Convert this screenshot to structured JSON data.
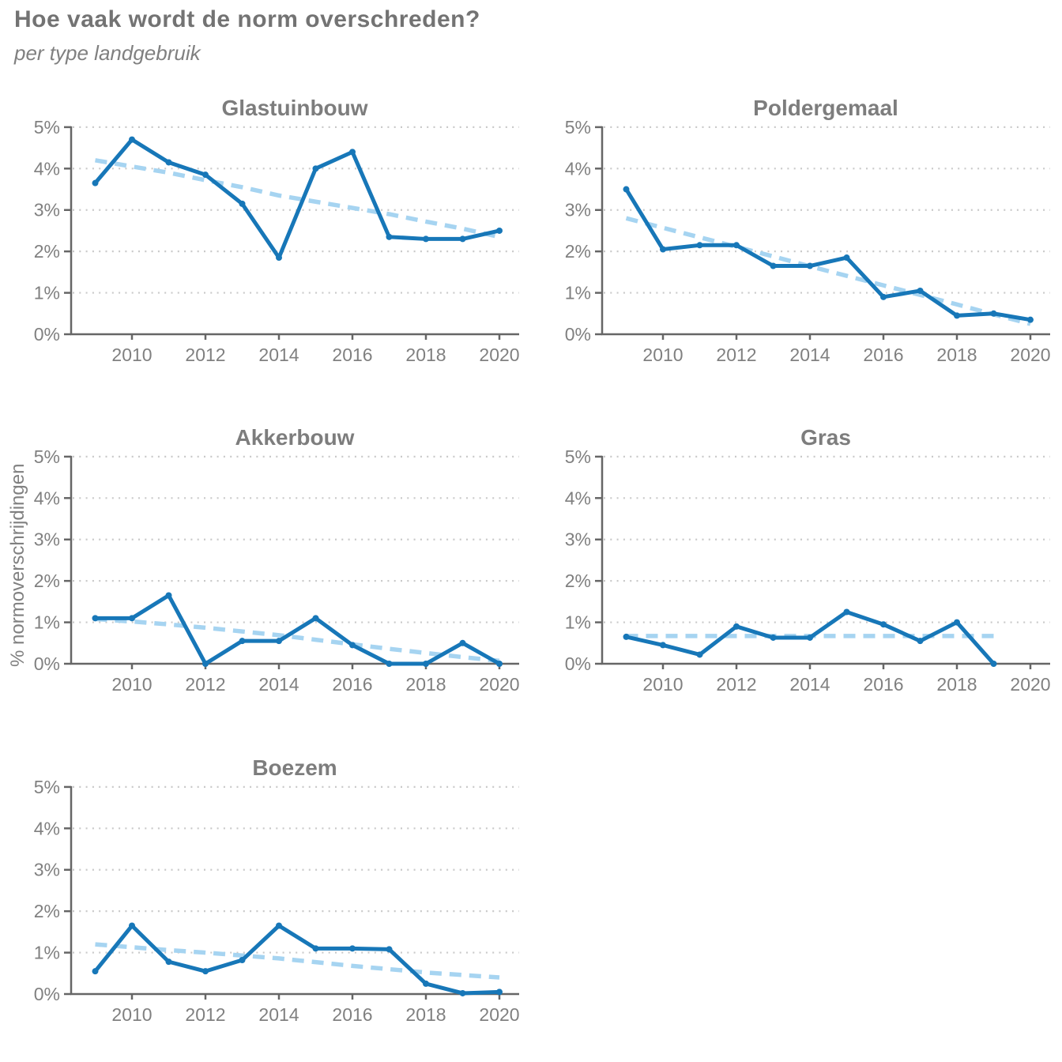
{
  "page": {
    "title": "Hoe vaak wordt de norm overschreden?",
    "subtitle": "per type landgebruik",
    "ylabel": "% normoverschrijdingen"
  },
  "colors": {
    "series": "#1777b8",
    "trend": "#a6d4f1",
    "grid": "#c9c9c9",
    "axis": "#666666",
    "tick_text": "#808080",
    "panel_title": "#7d7d7d",
    "header_text": "#737373"
  },
  "axis": {
    "x_ticks": [
      2010,
      2012,
      2014,
      2016,
      2018,
      2020
    ],
    "y_tick_labels": [
      "0%",
      "1%",
      "2%",
      "3%",
      "4%",
      "5%"
    ],
    "ylim": [
      0,
      5
    ],
    "grid": "dotted horizontal at 1%-5%",
    "legend": "none"
  },
  "chart_data": [
    {
      "type": "line",
      "title": "Glastuinbouw",
      "x": [
        2009,
        2010,
        2011,
        2012,
        2013,
        2014,
        2015,
        2016,
        2017,
        2018,
        2019,
        2020
      ],
      "values": [
        3.65,
        4.7,
        4.15,
        3.85,
        3.15,
        1.85,
        4.0,
        4.4,
        2.35,
        2.3,
        2.3,
        2.5
      ],
      "trend_values": [
        4.2,
        4.05,
        3.9,
        3.72,
        3.55,
        3.35,
        3.2,
        3.05,
        2.9,
        2.72,
        2.55,
        2.35
      ]
    },
    {
      "type": "line",
      "title": "Poldergemaal",
      "x": [
        2009,
        2010,
        2011,
        2012,
        2013,
        2014,
        2015,
        2016,
        2017,
        2018,
        2019,
        2020
      ],
      "values": [
        3.5,
        2.05,
        2.15,
        2.15,
        1.65,
        1.65,
        1.85,
        0.9,
        1.05,
        0.45,
        0.5,
        0.35
      ],
      "trend_values": [
        2.8,
        2.57,
        2.34,
        2.11,
        1.88,
        1.64,
        1.41,
        1.18,
        0.95,
        0.72,
        0.48,
        0.25
      ]
    },
    {
      "type": "line",
      "title": "Akkerbouw",
      "x": [
        2009,
        2010,
        2011,
        2012,
        2013,
        2014,
        2015,
        2016,
        2017,
        2018,
        2019,
        2020
      ],
      "values": [
        1.1,
        1.1,
        1.65,
        0.0,
        0.55,
        0.55,
        1.1,
        0.45,
        0.0,
        0.0,
        0.5,
        0.0
      ],
      "trend_values": [
        1.08,
        1.02,
        0.95,
        0.87,
        0.78,
        0.69,
        0.58,
        0.47,
        0.36,
        0.26,
        0.16,
        0.07
      ]
    },
    {
      "type": "line",
      "title": "Gras",
      "x": [
        2009,
        2010,
        2011,
        2012,
        2013,
        2014,
        2015,
        2016,
        2017,
        2018,
        2019
      ],
      "values": [
        0.65,
        0.45,
        0.22,
        0.9,
        0.63,
        0.63,
        1.25,
        0.95,
        0.55,
        1.0,
        0.0
      ],
      "trend_values": [
        0.67,
        0.67,
        0.67,
        0.67,
        0.67,
        0.67,
        0.67,
        0.67,
        0.67,
        0.67,
        0.67
      ]
    },
    {
      "type": "line",
      "title": "Boezem",
      "x": [
        2009,
        2010,
        2011,
        2012,
        2013,
        2014,
        2015,
        2016,
        2017,
        2018,
        2019,
        2020
      ],
      "values": [
        0.55,
        1.65,
        0.78,
        0.55,
        0.82,
        1.65,
        1.1,
        1.1,
        1.08,
        0.25,
        0.02,
        0.05
      ],
      "trend_values": [
        1.2,
        1.13,
        1.06,
        1.0,
        0.93,
        0.86,
        0.77,
        0.68,
        0.6,
        0.52,
        0.46,
        0.4
      ]
    }
  ]
}
